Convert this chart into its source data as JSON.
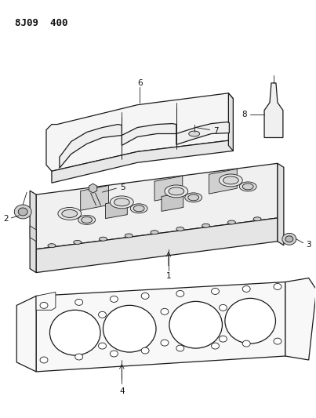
{
  "title_text": "8J09  400",
  "bg_color": "#ffffff",
  "line_color": "#1a1a1a",
  "label_color": "#111111",
  "lw_main": 0.9,
  "lw_thin": 0.6,
  "label_fs": 7.5
}
